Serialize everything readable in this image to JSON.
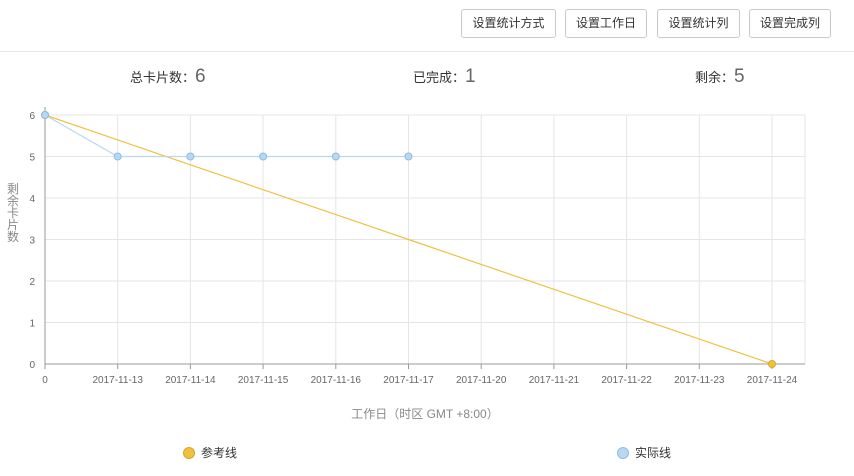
{
  "toolbar": {
    "stat_method_label": "设置统计方式",
    "workday_label": "设置工作日",
    "stat_columns_label": "设置统计列",
    "done_columns_label": "设置完成列"
  },
  "summary": {
    "total_label": "总卡片数：",
    "total_value": "6",
    "done_label": "已完成：",
    "done_value": "1",
    "remaining_label": "剩余：",
    "remaining_value": "5"
  },
  "colors": {
    "reference": "#f0c040",
    "reference_stroke": "#d9a820",
    "actual": "#b8d8f0",
    "actual_stroke": "#8dbde6",
    "grid": "#e5e5e5",
    "axis": "#999999"
  },
  "chart_data": {
    "type": "line",
    "title": "",
    "xlabel": "工作日（时区 GMT +8:00）",
    "ylabel": "剩余卡片数",
    "categories": [
      "0",
      "2017-11-13",
      "2017-11-14",
      "2017-11-15",
      "2017-11-16",
      "2017-11-17",
      "2017-11-20",
      "2017-11-21",
      "2017-11-22",
      "2017-11-23",
      "2017-11-24"
    ],
    "ylim": [
      0,
      6
    ],
    "yticks": [
      0,
      1,
      2,
      3,
      4,
      5,
      6
    ],
    "grid": true,
    "legend_position": "bottom",
    "series": [
      {
        "name": "参考线",
        "values": [
          6,
          5.4,
          4.8,
          4.2,
          3.6,
          3,
          2.4,
          1.8,
          1.2,
          0.6,
          0
        ],
        "markers_at": [
          0,
          10
        ]
      },
      {
        "name": "实际线",
        "values": [
          6,
          5,
          5,
          5,
          5,
          5,
          null,
          null,
          null,
          null,
          null
        ],
        "markers_at": [
          0,
          1,
          2,
          3,
          4,
          5
        ]
      }
    ]
  }
}
